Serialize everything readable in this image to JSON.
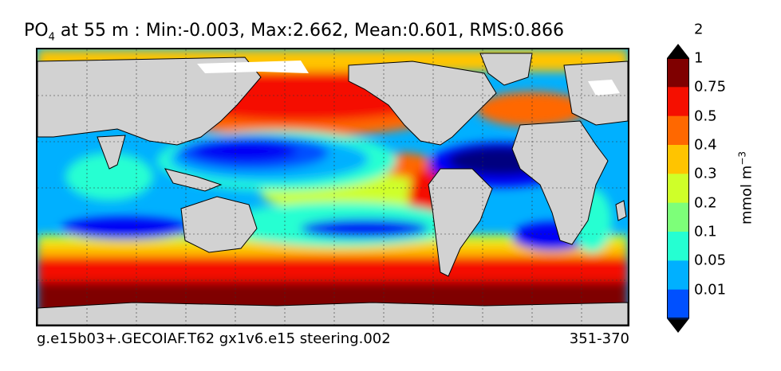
{
  "title": {
    "prefix": "PO",
    "subscript": "4",
    "rest": " at 55 m : Min:-0.003, Max:2.662, Mean:0.601, RMS:0.866"
  },
  "footer": {
    "case_name": "g.e15b03+.GECOIAF.T62 gx1v6.e15 steering.002",
    "years": "351-370"
  },
  "colorbar": {
    "units_base": "mmol m",
    "units_exp": "−3",
    "levels": [
      "0.01",
      "0.05",
      "0.1",
      "0.2",
      "0.3",
      "0.4",
      "0.5",
      "0.75",
      "1",
      "2"
    ],
    "colors": [
      "#00007f",
      "#0000f5",
      "#0050ff",
      "#00b0ff",
      "#25ffd2",
      "#7dff79",
      "#cfff29",
      "#ffc400",
      "#ff6800",
      "#f50f00",
      "#7f0000"
    ]
  },
  "colors": {
    "land": "#d2d2d2",
    "ice": "#ffffff"
  }
}
